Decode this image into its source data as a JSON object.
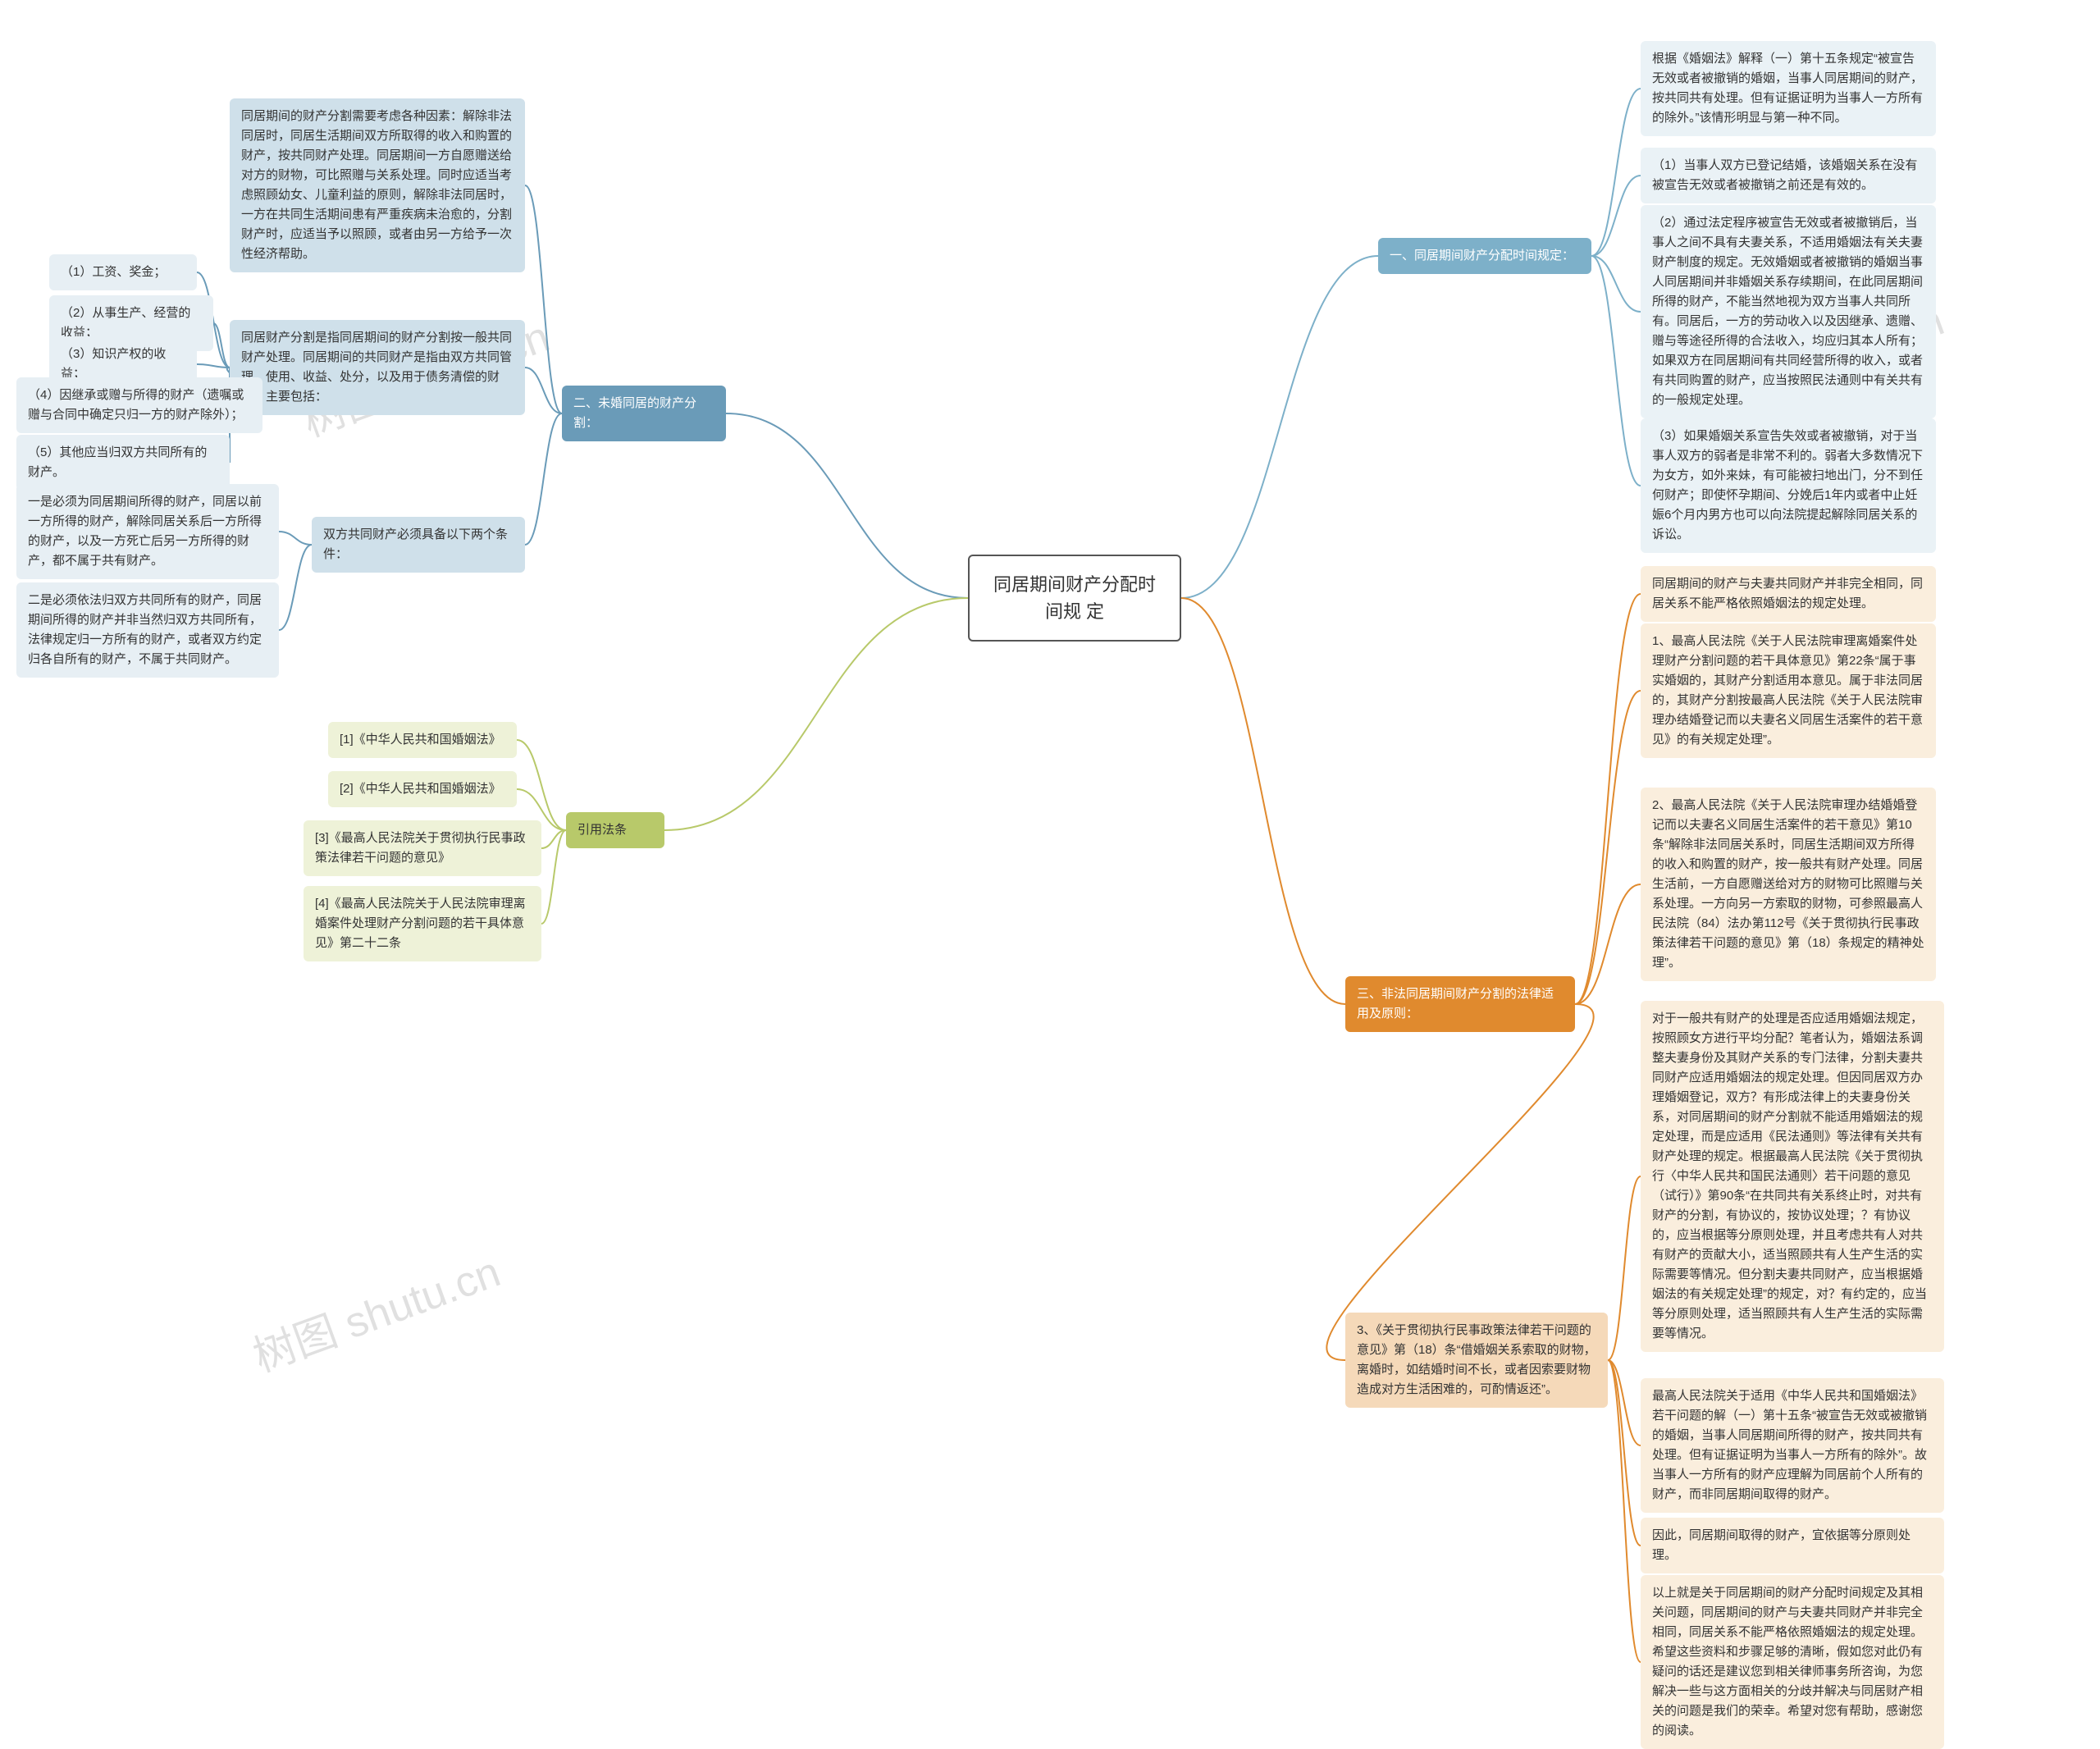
{
  "root": {
    "title": "同居期间财产分配时间规\n定"
  },
  "watermarks": [
    "树图 shutu.cn",
    "树图 shutu.cn",
    "树图 shutu.cn",
    "树图 shutu.cn"
  ],
  "colors": {
    "branch1_main": "#7db0c9",
    "branch1_sub": "#d4e5ee",
    "branch1_leaf": "#eaf2f6",
    "branch2_main": "#6a9bb8",
    "branch2_sub": "#cfe0ea",
    "branch2_leaf": "#e7eff4",
    "branch3_main": "#e08a2e",
    "branch3_sub": "#f5d9b9",
    "branch3_leaf": "#faeedd",
    "branch4_main": "#b8c96a",
    "branch4_leaf": "#eef2d8",
    "edge": "#888888"
  },
  "branch1": {
    "title": "一、同居期间财产分配时间规定：",
    "leaves": [
      "根据《婚姻法》解释（一）第十五条规定“被宣告无效或者被撤销的婚姻，当事人同居期间的财产，按共同共有处理。但有证据证明为当事人一方所有的除外。”该情形明显与第一种不同。",
      "（1）当事人双方已登记结婚，该婚姻关系在没有被宣告无效或者被撤销之前还是有效的。",
      "（2）通过法定程序被宣告无效或者被撤销后，当事人之间不具有夫妻关系，不适用婚姻法有关夫妻财产制度的规定。无效婚姻或者被撤销的婚姻当事人同居期间并非婚姻关系存续期间，在此同居期间所得的财产，不能当然地视为双方当事人共同所有。同居后，一方的劳动收入以及因继承、遗赠、赠与等途径所得的合法收入，均应归其本人所有；如果双方在同居期间有共同经营所得的收入，或者有共同购置的财产，应当按照民法通则中有关共有的一般规定处理。",
      "（3）如果婚姻关系宣告失效或者被撤销，对于当事人双方的弱者是非常不利的。弱者大多数情况下为女方，如外来妹，有可能被扫地出门，分不到任何财产；即使怀孕期间、分娩后1年内或者中止妊娠6个月内男方也可以向法院提起解除同居关系的诉讼。"
    ]
  },
  "branch2": {
    "title": "二、未婚同居的财产分割：",
    "sub1": "同居期间的财产分割需要考虑各种因素：解除非法同居时，同居生活期间双方所取得的收入和购置的财产，按共同财产处理。同居期间一方自愿赠送给对方的财物，可比照赠与关系处理。同时应适当考虑照顾幼女、儿童利益的原则，解除非法同居时，一方在共同生活期间患有严重疾病未治愈的，分割财产时，应适当予以照顾，或者由另一方给予一次性经济帮助。",
    "sub2": "同居财产分割是指同居期间的财产分割按一般共同财产处理。同居期间的共同财产是指由双方共同管理、使用、收益、处分，以及用于债务清偿的财产，主要包括：",
    "sub2_leaves": [
      "（1）工资、奖金；",
      "（2）从事生产、经营的收益；",
      "（3）知识产权的收益；",
      "（4）因继承或赠与所得的财产（遗嘱或赠与合同中确定只归一方的财产除外）；",
      "（5）其他应当归双方共同所有的财产。"
    ],
    "sub3": "双方共同财产必须具备以下两个条件：",
    "sub3_leaves": [
      "一是必须为同居期间所得的财产，同居以前一方所得的财产，解除同居关系后一方所得的财产，以及一方死亡后另一方所得的财产，都不属于共有财产。",
      "二是必须依法归双方共同所有的财产，同居期间所得的财产并非当然归双方共同所有，法律规定归一方所有的财产，或者双方约定归各自所有的财产，不属于共同财产。"
    ]
  },
  "branch3": {
    "title": "三、非法同居期间财产分割的法律适用及原则：",
    "sub1_leaves": [
      "同居期间的财产与夫妻共同财产并非完全相同，同居关系不能严格依照婚姻法的规定处理。",
      "1、最高人民法院《关于人民法院审理离婚案件处理财产分割问题的若干具体意见》第22条“属于事实婚姻的，其财产分割适用本意见。属于非法同居的，其财产分割按最高人民法院《关于人民法院审理办结婚登记而以夫妻名义同居生活案件的若干意见》的有关规定处理”。",
      "2、最高人民法院《关于人民法院审理办结婚婚登记而以夫妻名义同居生活案件的若干意见》第10条“解除非法同居关系时，同居生活期间双方所得的收入和购置的财产，按一般共有财产处理。同居生活前，一方自愿赠送给对方的财物可比照赠与关系处理。一方向另一方索取的财物，可参照最高人民法院（84）法办第112号《关于贯彻执行民事政策法律若干问题的意见》第（18）条规定的精神处理”。"
    ],
    "sub2": "3、《关于贯彻执行民事政策法律若干问题的意见》第（18）条“借婚姻关系索取的财物，离婚时，如结婚时间不长，或者因索要财物造成对方生活困难的，可酌情返还”。",
    "sub2_leaves": [
      "对于一般共有财产的处理是否应适用婚姻法规定，按照顾女方进行平均分配？笔者认为，婚姻法系调整夫妻身份及其财产关系的专门法律，分割夫妻共同财产应适用婚姻法的规定处理。但因同居双方办理婚姻登记，双方？有形成法律上的夫妻身份关系，对同居期间的财产分割就不能适用婚姻法的规定处理，而是应适用《民法通则》等法律有关共有财产处理的规定。根据最高人民法院《关于贯彻执行〈中华人民共和国民法通则〉若干问题的意见（试行）》第90条“在共同共有关系终止时，对共有财产的分割，有协议的，按协议处理；？有协议的，应当根据等分原则处理，并且考虑共有人对共有财产的贡献大小，适当照顾共有人生产生活的实际需要等情况。但分割夫妻共同财产，应当根据婚姻法的有关规定处理”的规定，对？有约定的，应当等分原则处理，适当照顾共有人生产生活的实际需要等情况。",
      "最高人民法院关于适用《中华人民共和国婚姻法》若干问题的解（一）第十五条“被宣告无效或被撤销的婚姻，当事人同居期间所得的财产，按共同共有处理。但有证据证明为当事人一方所有的除外”。故当事人一方所有的财产应理解为同居前个人所有的财产，而非同居期间取得的财产。",
      "因此，同居期间取得的财产，宜依据等分原则处理。",
      "以上就是关于同居期间的财产分配时间规定及其相关问题，同居期间的财产与夫妻共同财产并非完全相同，同居关系不能严格依照婚姻法的规定处理。希望这些资料和步骤足够的清晰，假如您对此仍有疑问的话还是建议您到相关律师事务所咨询，为您解决一些与这方面相关的分歧并解决与同居财产相关的问题是我们的荣幸。希望对您有帮助，感谢您的阅读。"
    ]
  },
  "branch4": {
    "title": "引用法条",
    "leaves": [
      "[1]《中华人民共和国婚姻法》",
      "[2]《中华人民共和国婚姻法》",
      "[3]《最高人民法院关于贯彻执行民事政策法律若干问题的意见》",
      "[4]《最高人民法院关于人民法院审理离婚案件处理财产分割问题的若干具体意见》第二十二条"
    ]
  }
}
